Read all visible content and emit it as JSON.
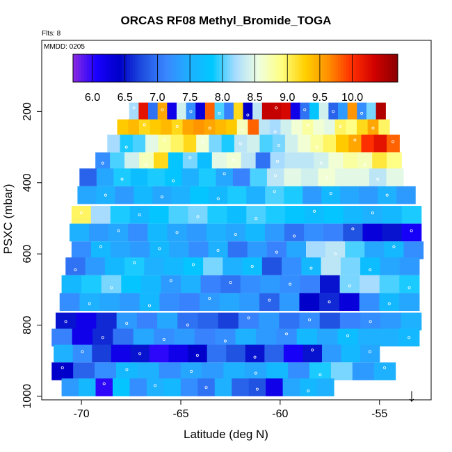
{
  "chart_data": {
    "type": "heatmap",
    "title": "ORCAS RF08 Methyl_Bromide_TOGA",
    "subtitle": "Flts: 8",
    "inset_label": "MMDD: 0205",
    "xlabel": "Latitude (deg N)",
    "ylabel": "PSXC (mbar)",
    "xlim": [
      -72,
      -52.4
    ],
    "ylim": [
      1010,
      0
    ],
    "x_ticks": [
      -70,
      -65,
      -60,
      -55
    ],
    "x_tick_labels": [
      "-70",
      "-65",
      "-60",
      "-55"
    ],
    "y_ticks": [
      200,
      400,
      600,
      800,
      1000
    ],
    "y_tick_labels": [
      "200",
      "400",
      "600",
      "800",
      "1000"
    ],
    "colorbar": {
      "min": 5.7,
      "max": 10.7,
      "ticks": [
        6.0,
        6.5,
        7.0,
        7.5,
        8.0,
        8.5,
        9.0,
        9.5,
        10.0
      ],
      "tick_labels": [
        "6.0",
        "6.5",
        "7.0",
        "7.5",
        "8.0",
        "8.5",
        "9.0",
        "9.5",
        "10.0"
      ],
      "colors": [
        "#8a2be2",
        "#1a00ff",
        "#0000c8",
        "#1f4fe0",
        "#3a86ff",
        "#1eb0ff",
        "#00c8ff",
        "#a8dcff",
        "#f0ffe0",
        "#ffff80",
        "#ffd000",
        "#ff9000",
        "#ff3000",
        "#d00000",
        "#8b0000"
      ]
    },
    "bands": [
      {
        "p": 200,
        "lat_min": -67.6,
        "lat_max": -54.7,
        "values": [
          8.2,
          10.2,
          7.0,
          9.5,
          6.2,
          8.4,
          7.2,
          6.3,
          9.8,
          8.0,
          7.1,
          9.2,
          6.4,
          8.3,
          10.4,
          10.4,
          10.3,
          6.2,
          7.0,
          7.8,
          8.4,
          6.9,
          7.3,
          9.6,
          7.2,
          8.1,
          10.5
        ]
      },
      {
        "p": 247,
        "lat_min": -68.2,
        "lat_max": -54.5,
        "values": [
          9.3,
          9.4,
          9.2,
          9.3,
          9.4,
          9.2,
          9.5,
          9.6,
          9.5,
          9.4,
          9.3,
          8.7,
          9.8,
          8.3,
          8.2,
          8.4,
          8.6,
          8.8,
          8.6,
          8.5,
          9.0,
          8.9,
          9.2,
          9.5,
          9.0
        ]
      },
      {
        "p": 290,
        "lat_min": -68.7,
        "lat_max": -54.0,
        "values": [
          8.2,
          7.9,
          8.0,
          8.5,
          8.8,
          9.0,
          9.2,
          8.6,
          8.1,
          7.9,
          8.3,
          8.4,
          8.0,
          8.1,
          8.4,
          8.6,
          8.8,
          9.0,
          9.3,
          9.5,
          10.0,
          10.2,
          9.8
        ]
      },
      {
        "p": 340,
        "lat_min": -69.3,
        "lat_max": -53.9,
        "values": [
          7.2,
          8.0,
          8.4,
          8.7,
          9.2,
          7.8,
          8.1,
          7.7,
          8.5,
          8.6,
          8.3,
          7.0,
          8.2,
          8.3,
          8.3,
          8.4,
          8.6,
          8.8,
          8.7,
          9.1,
          8.9
        ]
      },
      {
        "p": 385,
        "lat_min": -70.1,
        "lat_max": -53.8,
        "values": [
          6.9,
          7.4,
          7.9,
          7.7,
          7.9,
          7.8,
          7.5,
          7.9,
          7.4,
          7.1,
          8.0,
          8.3,
          8.5,
          8.4,
          8.6,
          8.5,
          8.5,
          8.3,
          8.5
        ]
      },
      {
        "p": 435,
        "lat_min": -70.2,
        "lat_max": -53.2,
        "values": [
          7.4,
          7.5,
          7.3,
          7.6,
          7.4,
          7.5,
          7.8,
          7.6,
          7.9,
          7.5,
          8.0,
          7.9,
          7.3,
          7.6,
          7.4,
          7.3,
          7.5,
          7.3
        ]
      },
      {
        "p": 490,
        "lat_min": -70.5,
        "lat_max": -52.9,
        "values": [
          9.0,
          8.2,
          7.9,
          7.6,
          7.8,
          8.0,
          8.1,
          7.9,
          7.7,
          8.0,
          7.9,
          7.8,
          7.7,
          7.8,
          7.6,
          7.5,
          7.6,
          7.9
        ]
      },
      {
        "p": 540,
        "lat_min": -70.6,
        "lat_max": -52.9,
        "values": [
          7.5,
          7.3,
          7.4,
          7.2,
          7.6,
          7.4,
          7.3,
          7.5,
          7.4,
          7.6,
          7.3,
          7.0,
          7.2,
          7.1,
          6.8,
          6.3,
          6.5,
          6.1
        ]
      },
      {
        "p": 590,
        "lat_min": -70.5,
        "lat_max": -52.8,
        "values": [
          7.2,
          7.6,
          7.4,
          7.3,
          7.6,
          7.4,
          7.2,
          7.5,
          7.0,
          7.3,
          7.1,
          7.4,
          8.2,
          8.3,
          8.0,
          7.4,
          7.6,
          7.2
        ]
      },
      {
        "p": 635,
        "lat_min": -70.8,
        "lat_max": -53.0,
        "values": [
          7.0,
          7.3,
          7.6,
          7.9,
          7.5,
          7.6,
          7.8,
          8.1,
          7.5,
          7.7,
          6.8,
          7.2,
          7.6,
          8.3,
          8.1,
          7.7,
          7.4,
          7.3
        ]
      },
      {
        "p": 685,
        "lat_min": -71.0,
        "lat_max": -53.0,
        "values": [
          7.6,
          7.9,
          8.1,
          7.8,
          7.6,
          7.3,
          7.5,
          7.1,
          7.0,
          7.2,
          7.3,
          7.2,
          7.1,
          6.5,
          8.1,
          8.2,
          8.0,
          7.9
        ]
      },
      {
        "p": 735,
        "lat_min": -71.1,
        "lat_max": -53.0,
        "values": [
          7.2,
          7.5,
          7.4,
          7.3,
          7.6,
          7.2,
          7.1,
          7.3,
          7.4,
          7.3,
          6.9,
          7.3,
          6.4,
          6.6,
          6.3,
          7.2,
          7.6,
          7.4
        ]
      },
      {
        "p": 790,
        "lat_min": -71.3,
        "lat_max": -52.9,
        "values": [
          6.5,
          6.2,
          6.6,
          7.3,
          7.1,
          7.4,
          7.0,
          6.9,
          6.7,
          7.1,
          7.3,
          7.0,
          7.2,
          6.8,
          7.1,
          7.2,
          7.3,
          7.5
        ]
      },
      {
        "p": 835,
        "lat_min": -71.5,
        "lat_max": -53.0,
        "values": [
          7.1,
          6.2,
          6.6,
          7.0,
          7.4,
          7.2,
          7.3,
          7.1,
          7.2,
          7.5,
          7.3,
          7.2,
          7.6,
          7.4,
          7.7,
          7.5,
          7.5,
          7.6
        ]
      },
      {
        "p": 880,
        "lat_min": -71.4,
        "lat_max": -55.0,
        "values": [
          7.5,
          7.2,
          6.7,
          6.2,
          6.5,
          6.0,
          6.2,
          6.4,
          7.0,
          6.8,
          6.5,
          6.9,
          6.1,
          6.5,
          7.3,
          7.6,
          7.4
        ]
      },
      {
        "p": 930,
        "lat_min": -71.5,
        "lat_max": -54.2,
        "values": [
          6.4,
          6.9,
          7.2,
          7.6,
          7.5,
          7.2,
          7.4,
          7.3,
          7.5,
          7.4,
          7.6,
          7.2,
          7.9,
          8.1,
          7.3,
          7.5
        ]
      },
      {
        "p": 975,
        "lat_min": -71.0,
        "lat_max": -57.3,
        "values": [
          7.3,
          7.6,
          6.0,
          7.8,
          7.2,
          7.5,
          7.6,
          7.2,
          7.0,
          7.5,
          6.9,
          6.8,
          6.2,
          7.4,
          7.6,
          7.5
        ]
      }
    ],
    "marker_glyph": "↓"
  }
}
